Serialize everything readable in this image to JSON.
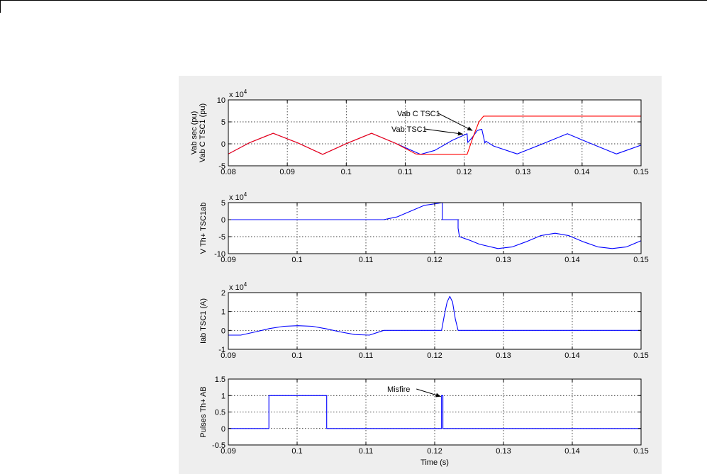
{
  "colors": {
    "background": "#ffffff",
    "figure": "#eeeeee",
    "blue": "#0000ff",
    "red": "#ff0000",
    "grid": "#000000"
  },
  "chart_data": [
    {
      "type": "line",
      "ylabel_lines": [
        "Vab sec (pu)",
        "Vab C TSC1 (pu)"
      ],
      "exponent": "x 10^4",
      "xlim": [
        0.08,
        0.15
      ],
      "ylim": [
        -5,
        10
      ],
      "xticks": [
        0.08,
        0.09,
        0.1,
        0.11,
        0.12,
        0.13,
        0.14,
        0.15
      ],
      "xtick_labels": [
        "0.08",
        "0.09",
        "0.1",
        "0.11",
        "0.12",
        "0.13",
        "0.14",
        "0.15"
      ],
      "yticks": [
        -5,
        0,
        5,
        10
      ],
      "ytick_labels": [
        "-5",
        "0",
        "5",
        "10"
      ],
      "grid": true,
      "series": [
        {
          "name": "Vab TSC1",
          "color": "#0000ff",
          "x": [
            0.08,
            0.0835,
            0.0876,
            0.0918,
            0.096,
            0.1001,
            0.1043,
            0.1084,
            0.1126,
            0.115,
            0.118,
            0.1205,
            0.1206,
            0.1214,
            0.1222,
            0.1226,
            0.123,
            0.1233,
            0.1235,
            0.1237,
            0.125,
            0.129,
            0.1333,
            0.1375,
            0.1416,
            0.1458,
            0.15
          ],
          "y": [
            -2.3,
            0.2,
            2.4,
            0.2,
            -2.4,
            0.1,
            2.4,
            0.1,
            -2.4,
            -1.5,
            0.8,
            2.3,
            0.3,
            1.5,
            3.0,
            3.2,
            3.3,
            1.5,
            0.2,
            0.6,
            -0.5,
            -2.3,
            0.0,
            2.3,
            0.0,
            -2.3,
            -0.3
          ]
        },
        {
          "name": "Vab C TSC1",
          "color": "#ff0000",
          "x": [
            0.08,
            0.0835,
            0.0876,
            0.0918,
            0.096,
            0.1001,
            0.1043,
            0.1084,
            0.1118,
            0.1126,
            0.1205,
            0.1215,
            0.1225,
            0.1233,
            0.15
          ],
          "y": [
            -2.3,
            0.2,
            2.4,
            0.2,
            -2.4,
            0.1,
            2.4,
            0.1,
            -2.3,
            -2.4,
            -2.4,
            1.5,
            5.0,
            6.3,
            6.3
          ]
        }
      ],
      "annotations": [
        {
          "text": "Vab C TSC1",
          "target_x": 0.1214,
          "target_y": 3.0
        },
        {
          "text": "Vab TSC1",
          "target_x": 0.1198,
          "target_y": 2.2
        }
      ]
    },
    {
      "type": "line",
      "ylabel_lines": [
        "V Th+ TSC1ab"
      ],
      "exponent": "x 10^4",
      "xlim": [
        0.09,
        0.15
      ],
      "ylim": [
        -10,
        5
      ],
      "xticks": [
        0.09,
        0.1,
        0.11,
        0.12,
        0.13,
        0.14,
        0.15
      ],
      "xtick_labels": [
        "0.09",
        "0.1",
        "0.11",
        "0.12",
        "0.13",
        "0.14",
        "0.15"
      ],
      "yticks": [
        -10,
        -5,
        0,
        5
      ],
      "ytick_labels": [
        "-10",
        "-5",
        "0",
        "5"
      ],
      "grid": true,
      "series": [
        {
          "name": "",
          "color": "#0000ff",
          "x": [
            0.09,
            0.1126,
            0.1145,
            0.1165,
            0.1185,
            0.1205,
            0.1211,
            0.1211,
            0.1234,
            0.1234,
            0.1236,
            0.125,
            0.1265,
            0.1292,
            0.1313,
            0.1333,
            0.1354,
            0.1375,
            0.1395,
            0.1416,
            0.1437,
            0.1458,
            0.1479,
            0.15
          ],
          "y": [
            0.0,
            0.0,
            0.8,
            2.5,
            4.2,
            4.8,
            5.0,
            0.0,
            0.0,
            -2.5,
            -5.0,
            -6.0,
            -7.2,
            -8.5,
            -8.0,
            -6.5,
            -4.7,
            -4.0,
            -4.7,
            -6.5,
            -8.0,
            -8.5,
            -8.0,
            -6.2
          ]
        }
      ],
      "annotations": []
    },
    {
      "type": "line",
      "ylabel_lines": [
        "Iab  TSC1 (A)"
      ],
      "exponent": "x 10^4",
      "xlim": [
        0.09,
        0.15
      ],
      "ylim": [
        -1,
        2
      ],
      "xticks": [
        0.09,
        0.1,
        0.11,
        0.12,
        0.13,
        0.14,
        0.15
      ],
      "xtick_labels": [
        "0.09",
        "0.1",
        "0.11",
        "0.12",
        "0.13",
        "0.14",
        "0.15"
      ],
      "yticks": [
        -1,
        0,
        1,
        2
      ],
      "ytick_labels": [
        "-1",
        "0",
        "1",
        "2"
      ],
      "grid": true,
      "series": [
        {
          "name": "",
          "color": "#0000ff",
          "x": [
            0.09,
            0.0918,
            0.0939,
            0.096,
            0.0981,
            0.1001,
            0.1022,
            0.1043,
            0.1063,
            0.1084,
            0.1105,
            0.1126,
            0.121,
            0.1214,
            0.1218,
            0.1222,
            0.1226,
            0.123,
            0.1234,
            0.15
          ],
          "y": [
            -0.25,
            -0.25,
            -0.08,
            0.1,
            0.22,
            0.25,
            0.22,
            0.08,
            -0.08,
            -0.22,
            -0.25,
            0.0,
            0.0,
            0.8,
            1.5,
            1.8,
            1.5,
            0.6,
            0.0,
            0.0
          ]
        }
      ],
      "annotations": []
    },
    {
      "type": "line",
      "ylabel_lines": [
        "Pulses Th+ AB"
      ],
      "xlabel": "Time (s)",
      "xlim": [
        0.09,
        0.15
      ],
      "ylim": [
        -0.5,
        1.5
      ],
      "xticks": [
        0.09,
        0.1,
        0.11,
        0.12,
        0.13,
        0.14,
        0.15
      ],
      "xtick_labels": [
        "0.09",
        "0.1",
        "0.11",
        "0.12",
        "0.13",
        "0.14",
        "0.15"
      ],
      "yticks": [
        -0.5,
        0,
        0.5,
        1,
        1.5
      ],
      "ytick_labels": [
        "-0.5",
        "0",
        "0.5",
        "1",
        "1.5"
      ],
      "grid": true,
      "series": [
        {
          "name": "",
          "color": "#0000ff",
          "x": [
            0.09,
            0.0959,
            0.0959,
            0.1043,
            0.1043,
            0.121,
            0.121,
            0.1212,
            0.1212,
            0.15
          ],
          "y": [
            0,
            0,
            1,
            1,
            0,
            0,
            1,
            1,
            0,
            0
          ]
        }
      ],
      "annotations": [
        {
          "text": "Misfire",
          "target_x": 0.1209,
          "target_y": 0.97
        }
      ]
    }
  ]
}
